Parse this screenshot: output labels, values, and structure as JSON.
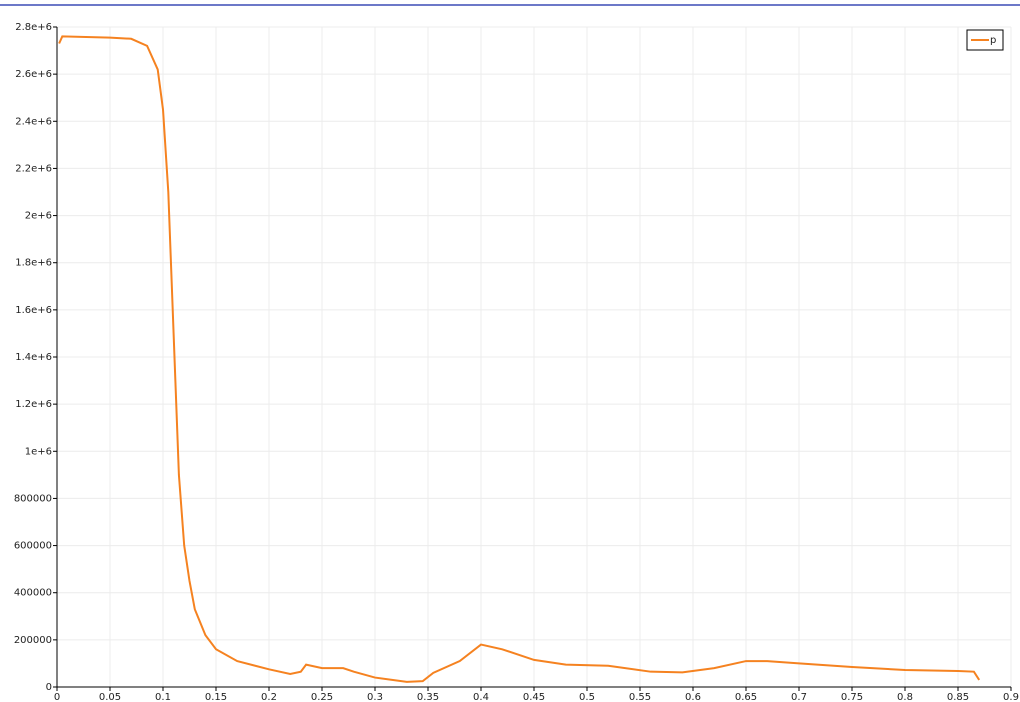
{
  "chart_data": {
    "type": "line",
    "x": [
      0.002,
      0.005,
      0.05,
      0.07,
      0.085,
      0.095,
      0.1,
      0.105,
      0.11,
      0.115,
      0.12,
      0.125,
      0.13,
      0.14,
      0.15,
      0.17,
      0.2,
      0.22,
      0.23,
      0.235,
      0.25,
      0.27,
      0.28,
      0.3,
      0.33,
      0.345,
      0.355,
      0.38,
      0.4,
      0.42,
      0.45,
      0.48,
      0.52,
      0.56,
      0.59,
      0.62,
      0.65,
      0.67,
      0.7,
      0.75,
      0.8,
      0.85,
      0.865,
      0.87
    ],
    "series": [
      {
        "name": "p",
        "color": "#f58220",
        "values": [
          2730000,
          2760000,
          2755000,
          2750000,
          2720000,
          2620000,
          2450000,
          2100000,
          1500000,
          900000,
          600000,
          450000,
          330000,
          220000,
          160000,
          110000,
          75000,
          55000,
          65000,
          95000,
          80000,
          80000,
          65000,
          40000,
          22000,
          25000,
          60000,
          110000,
          180000,
          160000,
          115000,
          95000,
          90000,
          65000,
          62000,
          80000,
          110000,
          110000,
          100000,
          85000,
          72000,
          68000,
          65000,
          30000
        ]
      }
    ],
    "xlim": [
      0,
      0.9
    ],
    "xticks": [
      0,
      0.05,
      0.1,
      0.15,
      0.2,
      0.25,
      0.3,
      0.35,
      0.4,
      0.45,
      0.5,
      0.55,
      0.6,
      0.65,
      0.7,
      0.75,
      0.8,
      0.85,
      0.9
    ],
    "ylim": [
      0,
      2800000
    ],
    "yticks": [
      0,
      200000,
      400000,
      600000,
      800000,
      {
        "value": 1000000,
        "label": "1e+6"
      },
      {
        "value": 1200000,
        "label": "1.2e+6"
      },
      {
        "value": 1400000,
        "label": "1.4e+6"
      },
      {
        "value": 1600000,
        "label": "1.6e+6"
      },
      {
        "value": 1800000,
        "label": "1.8e+6"
      },
      {
        "value": 2000000,
        "label": "2e+6"
      },
      {
        "value": 2200000,
        "label": "2.2e+6"
      },
      {
        "value": 2400000,
        "label": "2.4e+6"
      },
      {
        "value": 2600000,
        "label": "2.6e+6"
      },
      {
        "value": 2800000,
        "label": "2.8e+6"
      }
    ],
    "grid": true,
    "legend": "upper right"
  }
}
